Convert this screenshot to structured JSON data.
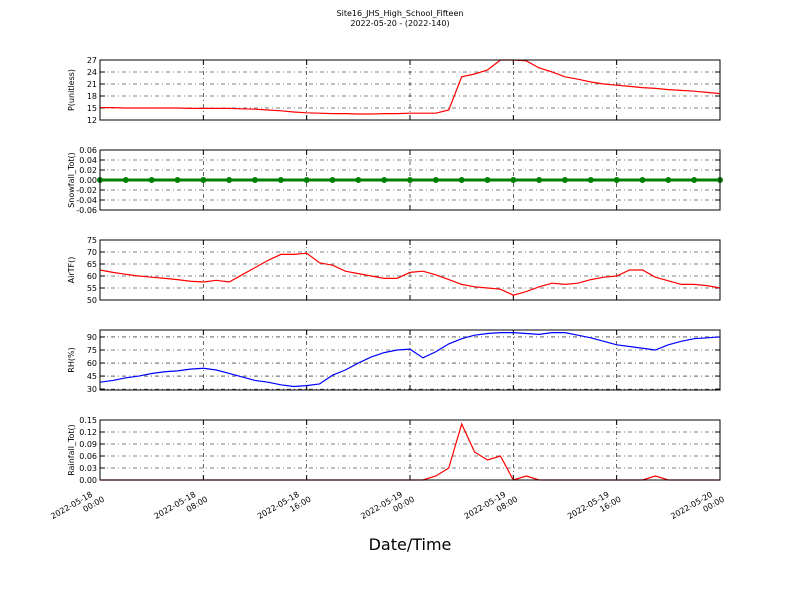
{
  "title": "Site16_JHS_High_School_Fifteen",
  "subtitle": "2022-05-20 - (2022-140)",
  "x_axis": {
    "label": "Date/Time",
    "xlim": [
      "2022-05-18 00:00",
      "2022-05-20 00:00"
    ],
    "xticks": [
      "2022-05-18 00:00",
      "2022-05-18 08:00",
      "2022-05-18 16:00",
      "2022-05-19 00:00",
      "2022-05-19 08:00",
      "2022-05-19 16:00",
      "2022-05-20 00:00"
    ]
  },
  "chart_data": [
    {
      "type": "line",
      "ylabel": "P(unitless)",
      "color": "#ff0000",
      "ylim": [
        12,
        27
      ],
      "yticks": [
        12,
        15,
        18,
        21,
        24,
        27
      ],
      "grid": true,
      "x": [
        "2022-05-18 00:00",
        "2022-05-18 01:00",
        "2022-05-18 02:00",
        "2022-05-18 03:00",
        "2022-05-18 04:00",
        "2022-05-18 05:00",
        "2022-05-18 06:00",
        "2022-05-18 07:00",
        "2022-05-18 08:00",
        "2022-05-18 09:00",
        "2022-05-18 10:00",
        "2022-05-18 11:00",
        "2022-05-18 12:00",
        "2022-05-18 13:00",
        "2022-05-18 14:00",
        "2022-05-18 15:00",
        "2022-05-18 16:00",
        "2022-05-18 17:00",
        "2022-05-18 18:00",
        "2022-05-18 19:00",
        "2022-05-18 20:00",
        "2022-05-18 21:00",
        "2022-05-18 22:00",
        "2022-05-18 23:00",
        "2022-05-19 00:00",
        "2022-05-19 01:00",
        "2022-05-19 02:00",
        "2022-05-19 03:00",
        "2022-05-19 04:00",
        "2022-05-19 05:00",
        "2022-05-19 06:00",
        "2022-05-19 07:00",
        "2022-05-19 08:00",
        "2022-05-19 09:00",
        "2022-05-19 10:00",
        "2022-05-19 11:00",
        "2022-05-19 12:00",
        "2022-05-19 13:00",
        "2022-05-19 14:00",
        "2022-05-19 15:00",
        "2022-05-19 16:00",
        "2022-05-19 17:00",
        "2022-05-19 18:00",
        "2022-05-19 19:00",
        "2022-05-19 20:00",
        "2022-05-19 21:00",
        "2022-05-19 22:00",
        "2022-05-19 23:00",
        "2022-05-20 00:00"
      ],
      "values": [
        15.1,
        15.1,
        15.0,
        15.0,
        15.0,
        15.0,
        15.0,
        14.9,
        14.9,
        14.9,
        14.9,
        14.8,
        14.7,
        14.5,
        14.3,
        14.0,
        13.8,
        13.7,
        13.6,
        13.6,
        13.5,
        13.5,
        13.6,
        13.6,
        13.7,
        13.7,
        13.7,
        14.5,
        22.8,
        23.5,
        24.5,
        27,
        27,
        26.8,
        25,
        24,
        22.8,
        22.2,
        21.5,
        21,
        20.7,
        20.4,
        20.1,
        19.9,
        19.6,
        19.4,
        19.2,
        18.9,
        18.6
      ]
    },
    {
      "type": "line",
      "ylabel": "Snowfall_Tot()",
      "color": "#008000",
      "marker": "o",
      "ylim": [
        -0.06,
        0.06
      ],
      "yticks": [
        -0.06,
        -0.04,
        -0.02,
        {
          "value": 0,
          "label": "0.00"
        },
        0.02,
        0.04,
        0.06
      ],
      "grid": true,
      "x": [
        "2022-05-18 00:00",
        "2022-05-18 02:00",
        "2022-05-18 04:00",
        "2022-05-18 06:00",
        "2022-05-18 08:00",
        "2022-05-18 10:00",
        "2022-05-18 12:00",
        "2022-05-18 14:00",
        "2022-05-18 16:00",
        "2022-05-18 18:00",
        "2022-05-18 20:00",
        "2022-05-18 22:00",
        "2022-05-19 00:00",
        "2022-05-19 02:00",
        "2022-05-19 04:00",
        "2022-05-19 06:00",
        "2022-05-19 08:00",
        "2022-05-19 10:00",
        "2022-05-19 12:00",
        "2022-05-19 14:00",
        "2022-05-19 16:00",
        "2022-05-19 18:00",
        "2022-05-19 20:00",
        "2022-05-19 22:00",
        "2022-05-20 00:00"
      ],
      "values": [
        0,
        0,
        0,
        0,
        0,
        0,
        0,
        0,
        0,
        0,
        0,
        0,
        0,
        0,
        0,
        0,
        0,
        0,
        0,
        0,
        0,
        0,
        0,
        0,
        0
      ]
    },
    {
      "type": "line",
      "ylabel": "AirTF()",
      "color": "#ff0000",
      "ylim": [
        50,
        75
      ],
      "yticks": [
        50,
        55,
        60,
        65,
        70,
        75
      ],
      "grid": true,
      "x": [
        "2022-05-18 00:00",
        "2022-05-18 01:00",
        "2022-05-18 02:00",
        "2022-05-18 03:00",
        "2022-05-18 04:00",
        "2022-05-18 05:00",
        "2022-05-18 06:00",
        "2022-05-18 07:00",
        "2022-05-18 08:00",
        "2022-05-18 09:00",
        "2022-05-18 10:00",
        "2022-05-18 11:00",
        "2022-05-18 12:00",
        "2022-05-18 13:00",
        "2022-05-18 14:00",
        "2022-05-18 15:00",
        "2022-05-18 16:00",
        "2022-05-18 17:00",
        "2022-05-18 18:00",
        "2022-05-18 19:00",
        "2022-05-18 20:00",
        "2022-05-18 21:00",
        "2022-05-18 22:00",
        "2022-05-18 23:00",
        "2022-05-19 00:00",
        "2022-05-19 01:00",
        "2022-05-19 02:00",
        "2022-05-19 03:00",
        "2022-05-19 04:00",
        "2022-05-19 05:00",
        "2022-05-19 06:00",
        "2022-05-19 07:00",
        "2022-05-19 08:00",
        "2022-05-19 09:00",
        "2022-05-19 10:00",
        "2022-05-19 11:00",
        "2022-05-19 12:00",
        "2022-05-19 13:00",
        "2022-05-19 14:00",
        "2022-05-19 15:00",
        "2022-05-19 16:00",
        "2022-05-19 17:00",
        "2022-05-19 18:00",
        "2022-05-19 19:00",
        "2022-05-19 20:00",
        "2022-05-19 21:00",
        "2022-05-19 22:00",
        "2022-05-19 23:00",
        "2022-05-20 00:00"
      ],
      "values": [
        62.5,
        61.5,
        60.7,
        60,
        59.5,
        59,
        58.5,
        57.8,
        57.5,
        58.2,
        57.5,
        60.5,
        63.5,
        66.5,
        69,
        69,
        69.5,
        65.5,
        64.5,
        62,
        61,
        60,
        59,
        59,
        61.5,
        62,
        60.5,
        58.5,
        56.5,
        55.5,
        55,
        54.5,
        52,
        53.5,
        55.5,
        57,
        56.5,
        57,
        58.5,
        59.5,
        60,
        62.5,
        62.5,
        59.5,
        58,
        56.5,
        56.5,
        56,
        55
      ]
    },
    {
      "type": "line",
      "ylabel": "RH(%)",
      "color": "#0000ff",
      "ylim": [
        29,
        98
      ],
      "yticks": [
        30,
        45,
        60,
        75,
        90
      ],
      "grid": true,
      "x": [
        "2022-05-18 00:00",
        "2022-05-18 01:00",
        "2022-05-18 02:00",
        "2022-05-18 03:00",
        "2022-05-18 04:00",
        "2022-05-18 05:00",
        "2022-05-18 06:00",
        "2022-05-18 07:00",
        "2022-05-18 08:00",
        "2022-05-18 09:00",
        "2022-05-18 10:00",
        "2022-05-18 11:00",
        "2022-05-18 12:00",
        "2022-05-18 13:00",
        "2022-05-18 14:00",
        "2022-05-18 15:00",
        "2022-05-18 16:00",
        "2022-05-18 17:00",
        "2022-05-18 18:00",
        "2022-05-18 19:00",
        "2022-05-18 20:00",
        "2022-05-18 21:00",
        "2022-05-18 22:00",
        "2022-05-18 23:00",
        "2022-05-19 00:00",
        "2022-05-19 01:00",
        "2022-05-19 02:00",
        "2022-05-19 03:00",
        "2022-05-19 04:00",
        "2022-05-19 05:00",
        "2022-05-19 06:00",
        "2022-05-19 07:00",
        "2022-05-19 08:00",
        "2022-05-19 09:00",
        "2022-05-19 10:00",
        "2022-05-19 11:00",
        "2022-05-19 12:00",
        "2022-05-19 13:00",
        "2022-05-19 14:00",
        "2022-05-19 15:00",
        "2022-05-19 16:00",
        "2022-05-19 17:00",
        "2022-05-19 18:00",
        "2022-05-19 19:00",
        "2022-05-19 20:00",
        "2022-05-19 21:00",
        "2022-05-19 22:00",
        "2022-05-19 23:00",
        "2022-05-20 00:00"
      ],
      "values": [
        38,
        40,
        43,
        45,
        48,
        50,
        51,
        53,
        54,
        52,
        48,
        44,
        40,
        38,
        35,
        33,
        34,
        36,
        46,
        52,
        60,
        67,
        72,
        75,
        76,
        66,
        73,
        82,
        88,
        92,
        94,
        95,
        95,
        94,
        93,
        95,
        95,
        92,
        89,
        85,
        81,
        79,
        77,
        75,
        81,
        85,
        88,
        89,
        90
      ]
    },
    {
      "type": "line",
      "ylabel": "Rainfall_Tot()",
      "color": "#ff0000",
      "ylim": [
        0,
        0.15
      ],
      "yticks": [
        {
          "value": 0,
          "label": "0.00"
        },
        0.03,
        0.06,
        0.09,
        0.12,
        0.15
      ],
      "grid": true,
      "x": [
        "2022-05-18 00:00",
        "2022-05-18 01:00",
        "2022-05-18 02:00",
        "2022-05-18 03:00",
        "2022-05-18 04:00",
        "2022-05-18 05:00",
        "2022-05-18 06:00",
        "2022-05-18 07:00",
        "2022-05-18 08:00",
        "2022-05-18 09:00",
        "2022-05-18 10:00",
        "2022-05-18 11:00",
        "2022-05-18 12:00",
        "2022-05-18 13:00",
        "2022-05-18 14:00",
        "2022-05-18 15:00",
        "2022-05-18 16:00",
        "2022-05-18 17:00",
        "2022-05-18 18:00",
        "2022-05-18 19:00",
        "2022-05-18 20:00",
        "2022-05-18 21:00",
        "2022-05-18 22:00",
        "2022-05-18 23:00",
        "2022-05-19 00:00",
        "2022-05-19 01:00",
        "2022-05-19 02:00",
        "2022-05-19 03:00",
        "2022-05-19 04:00",
        "2022-05-19 05:00",
        "2022-05-19 06:00",
        "2022-05-19 07:00",
        "2022-05-19 08:00",
        "2022-05-19 09:00",
        "2022-05-19 10:00",
        "2022-05-19 11:00",
        "2022-05-19 12:00",
        "2022-05-19 13:00",
        "2022-05-19 14:00",
        "2022-05-19 15:00",
        "2022-05-19 16:00",
        "2022-05-19 17:00",
        "2022-05-19 18:00",
        "2022-05-19 19:00",
        "2022-05-19 20:00",
        "2022-05-19 21:00",
        "2022-05-19 22:00",
        "2022-05-19 23:00",
        "2022-05-20 00:00"
      ],
      "values": [
        0,
        0,
        0,
        0,
        0,
        0,
        0,
        0,
        0,
        0,
        0,
        0,
        0,
        0,
        0,
        0,
        0,
        0,
        0,
        0,
        0,
        0,
        0,
        0,
        0,
        0,
        0.01,
        0.03,
        0.14,
        0.07,
        0.05,
        0.06,
        0,
        0.01,
        0,
        0,
        0,
        0,
        0,
        0,
        0,
        0,
        0,
        0.01,
        0,
        0,
        0,
        0,
        0
      ]
    }
  ]
}
